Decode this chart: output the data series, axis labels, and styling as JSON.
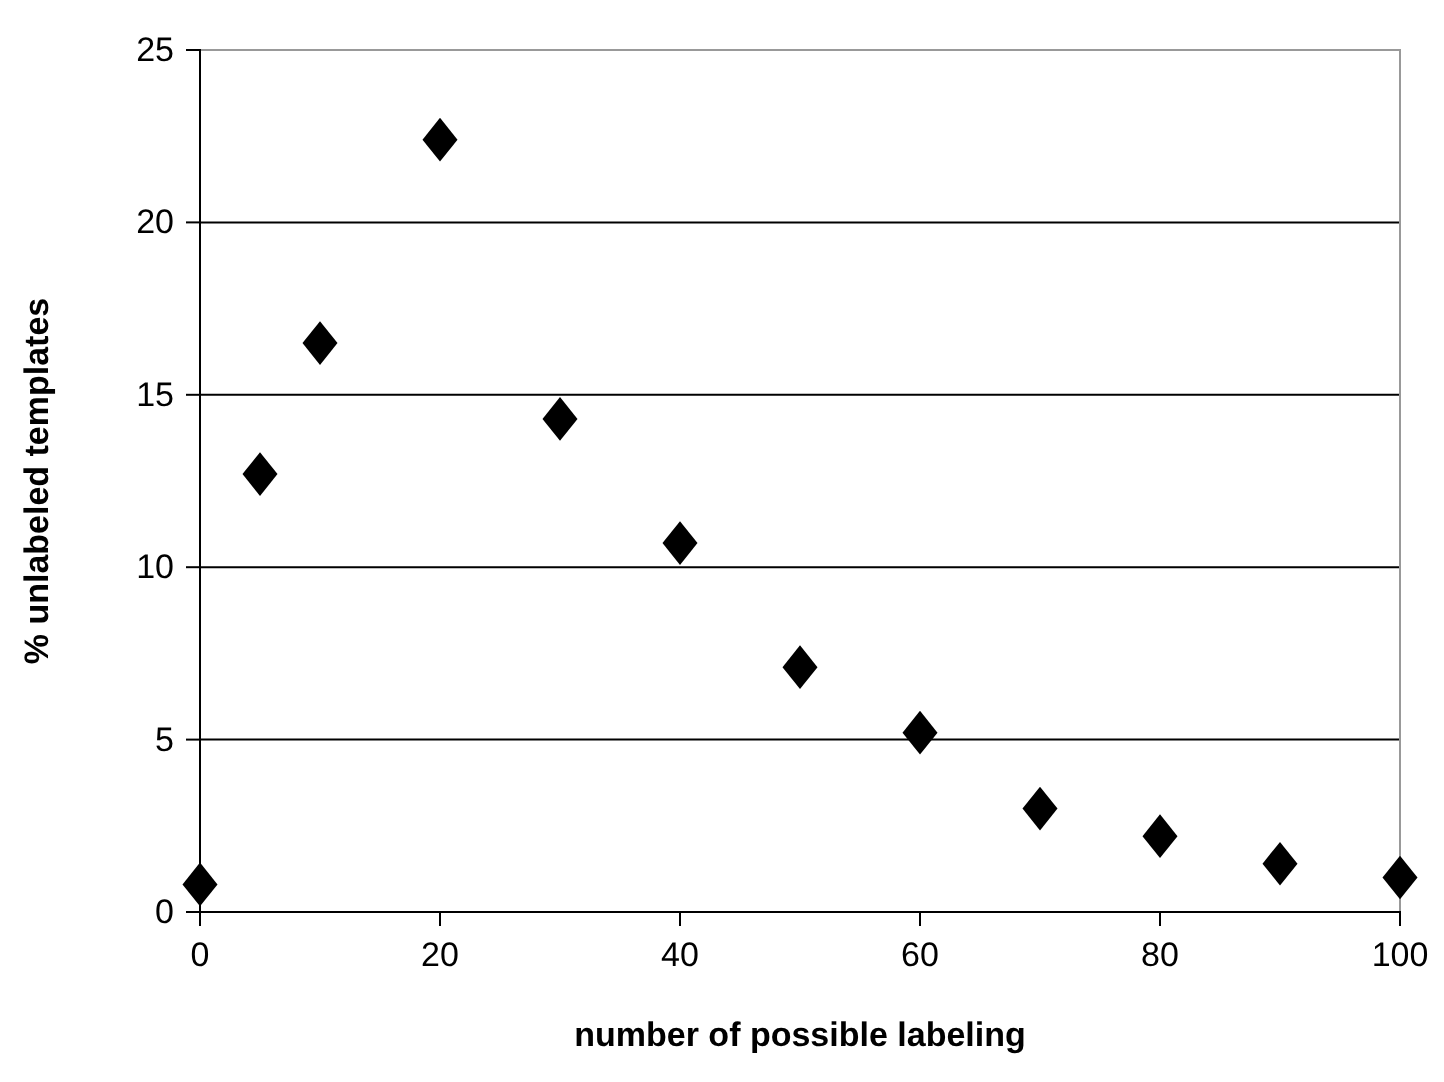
{
  "chart_data": {
    "type": "scatter",
    "xlabel": "number of possible labeling",
    "ylabel": "% unlabeled templates",
    "x": [
      0,
      5,
      10,
      20,
      30,
      40,
      50,
      60,
      70,
      80,
      90,
      100
    ],
    "values": [
      0.8,
      12.7,
      16.5,
      22.4,
      14.3,
      10.7,
      7.1,
      5.2,
      3.0,
      2.2,
      1.4,
      1.0
    ],
    "color": "#000000",
    "marker": "diamond",
    "xlim": [
      0,
      100
    ],
    "xticks": [
      0,
      20,
      40,
      60,
      80,
      100
    ],
    "ylim": [
      0,
      25
    ],
    "yticks": [
      0,
      5,
      10,
      15,
      20,
      25
    ],
    "grid": "y"
  }
}
